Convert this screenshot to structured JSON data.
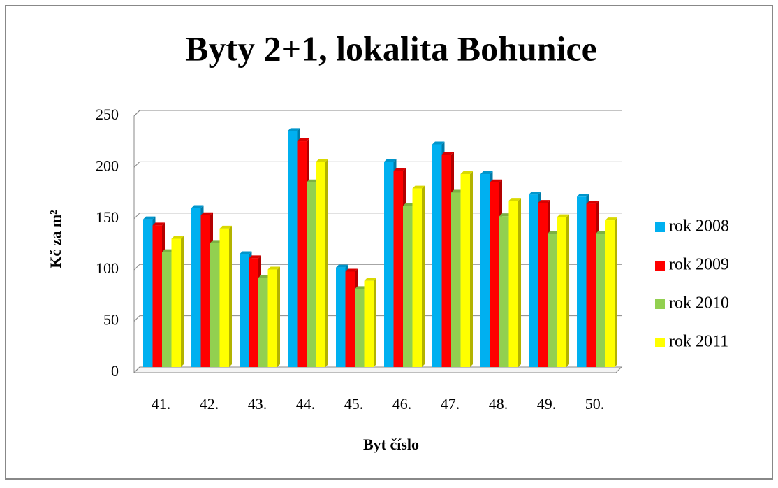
{
  "chart_data": {
    "type": "bar",
    "title": "Byty 2+1, lokalita Bohunice",
    "x_label": "Byt číslo",
    "y_label": "Kč za m²",
    "categories": [
      "41.",
      "42.",
      "43.",
      "44.",
      "45.",
      "46.",
      "47.",
      "48.",
      "49.",
      "50."
    ],
    "series": [
      {
        "name": "rok 2008",
        "color": "#00b0f0",
        "values": [
          144,
          155,
          110,
          230,
          97,
          200,
          217,
          188,
          168,
          166
        ]
      },
      {
        "name": "rok 2009",
        "color": "#ff0000",
        "values": [
          138,
          148,
          106,
          220,
          93,
          191,
          207,
          180,
          160,
          159
        ]
      },
      {
        "name": "rok 2010",
        "color": "#92d050",
        "values": [
          112,
          121,
          87,
          180,
          76,
          157,
          170,
          147,
          130,
          130
        ]
      },
      {
        "name": "rok 2011",
        "color": "#ffff00",
        "values": [
          125,
          135,
          95,
          200,
          84,
          174,
          188,
          162,
          146,
          143
        ]
      }
    ],
    "ylim": [
      0,
      250
    ],
    "yticks": [
      0,
      50,
      100,
      150,
      200,
      250
    ],
    "grid": true,
    "legend": "right"
  }
}
